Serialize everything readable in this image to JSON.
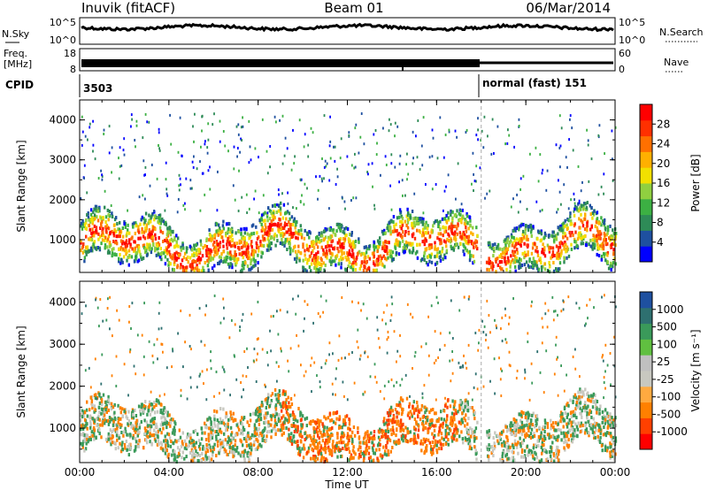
{
  "header": {
    "station": "Inuvik (fitACF)",
    "beam": "Beam 01",
    "date": "06/Mar/2014"
  },
  "strips": {
    "nsky_label": "N.Sky",
    "nsky_ticks": [
      "10^5",
      "10^0"
    ],
    "nsearch_label": "N.Search",
    "nsearch_ticks": [
      "10^5",
      "10^0"
    ],
    "freq_label": "Freq.",
    "freq_unit": "[MHz]",
    "freq_ticks": [
      "18",
      "8"
    ],
    "nave_label": "Nave",
    "nave_ticks": [
      "60",
      "0"
    ],
    "cpid_label": "CPID",
    "cpid_segments": [
      {
        "start_hour": 0,
        "text": "3503"
      },
      {
        "start_hour": 18,
        "text": "normal (fast) 151"
      }
    ]
  },
  "chart_data": [
    {
      "type": "heatmap",
      "title": "",
      "xlabel": "",
      "ylabel": "Slant Range [km]",
      "x_ticks": [
        "00:00",
        "04:00",
        "08:00",
        "12:00",
        "16:00",
        "20:00",
        "00:00"
      ],
      "x_range_hours": [
        0,
        24
      ],
      "y_ticks": [
        1000,
        2000,
        3000,
        4000
      ],
      "ylim": [
        180,
        4500
      ],
      "colorbar": {
        "label": "Power [dB]",
        "ticks": [
          "28",
          "24",
          "20",
          "16",
          "12",
          "8",
          "4"
        ],
        "colors": [
          "#0000ff",
          "#1e50a0",
          "#2e8b57",
          "#3cb043",
          "#90d040",
          "#f2e000",
          "#ffb000",
          "#ff7000",
          "#ff3000",
          "#ff0000"
        ]
      },
      "mode_change_hour": 18
    },
    {
      "type": "heatmap",
      "title": "",
      "xlabel": "Time UT",
      "ylabel": "Slant Range [km]",
      "x_ticks": [
        "00:00",
        "04:00",
        "08:00",
        "12:00",
        "16:00",
        "20:00",
        "00:00"
      ],
      "x_range_hours": [
        0,
        24
      ],
      "y_ticks": [
        1000,
        2000,
        3000,
        4000
      ],
      "ylim": [
        180,
        4500
      ],
      "colorbar": {
        "label": "Velocity [m s⁻¹]",
        "ticks": [
          "1000",
          "500",
          "100",
          "25",
          "-25",
          "-100",
          "-500",
          "-1000"
        ],
        "colors": [
          "#ff0000",
          "#ff4000",
          "#ff8000",
          "#ffaa40",
          "#c8c8c0",
          "#c0c0c0",
          "#60c040",
          "#3a9a5a",
          "#2e7070",
          "#1e50a0"
        ]
      },
      "mode_change_hour": 18
    }
  ]
}
